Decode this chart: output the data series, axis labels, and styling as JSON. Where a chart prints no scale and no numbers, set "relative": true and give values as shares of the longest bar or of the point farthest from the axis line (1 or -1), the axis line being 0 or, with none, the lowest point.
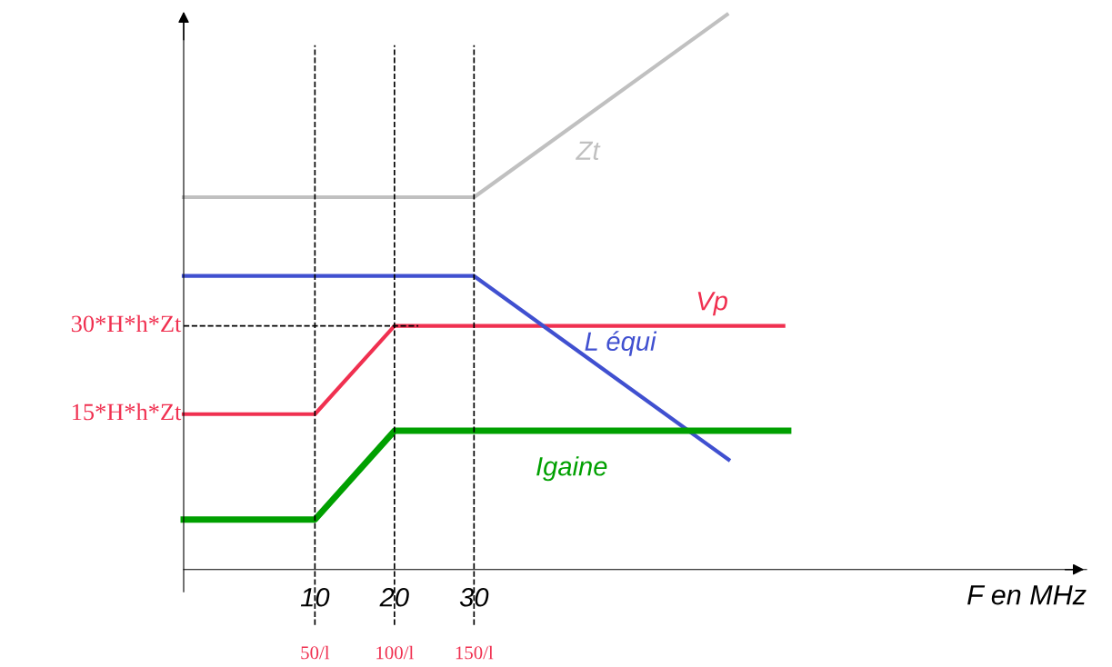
{
  "chart_data": {
    "type": "line",
    "relative": true,
    "xlabel": "F en MHz",
    "xlim": [
      -6.5,
      107
    ],
    "xticks": [
      10,
      20,
      30
    ],
    "grid": false,
    "legend": false,
    "marker": "none",
    "line_style": "solid",
    "series": [
      {
        "name": "Zt",
        "color": "#c0c0c0",
        "x": [
          -6.5,
          30,
          61.8
        ],
        "values": [
          0.671,
          0.671,
          1
        ]
      },
      {
        "name": "Vp",
        "color": "#f03050",
        "x": [
          -6.5,
          10,
          20,
          68.9
        ],
        "values": [
          0.28,
          0.28,
          0.439,
          0.439
        ]
      },
      {
        "name": "L équi",
        "color": "#4050d0",
        "x": [
          -6.5,
          30,
          62
        ],
        "values": [
          0.529,
          0.529,
          0.198
        ]
      },
      {
        "name": "Igaine",
        "color": "#00a000",
        "x": [
          -6.5,
          10,
          20,
          69.5
        ],
        "values": [
          0.09,
          0.09,
          0.25,
          0.25
        ]
      }
    ],
    "ref_lines": [
      {
        "axis": "x",
        "value": 10,
        "label": "50/l",
        "color": "#000000",
        "line_style": "dashed"
      },
      {
        "axis": "x",
        "value": 20,
        "label": "100/l",
        "color": "#000000",
        "line_style": "dashed"
      },
      {
        "axis": "x",
        "value": 30,
        "label": "150/l",
        "color": "#000000",
        "line_style": "dashed"
      },
      {
        "axis": "y",
        "value": 0.439,
        "label": "30*H*h*Zt",
        "color": "#000000",
        "line_style": "dashed"
      }
    ],
    "annotations": [
      "15*H*h*Zt"
    ]
  }
}
